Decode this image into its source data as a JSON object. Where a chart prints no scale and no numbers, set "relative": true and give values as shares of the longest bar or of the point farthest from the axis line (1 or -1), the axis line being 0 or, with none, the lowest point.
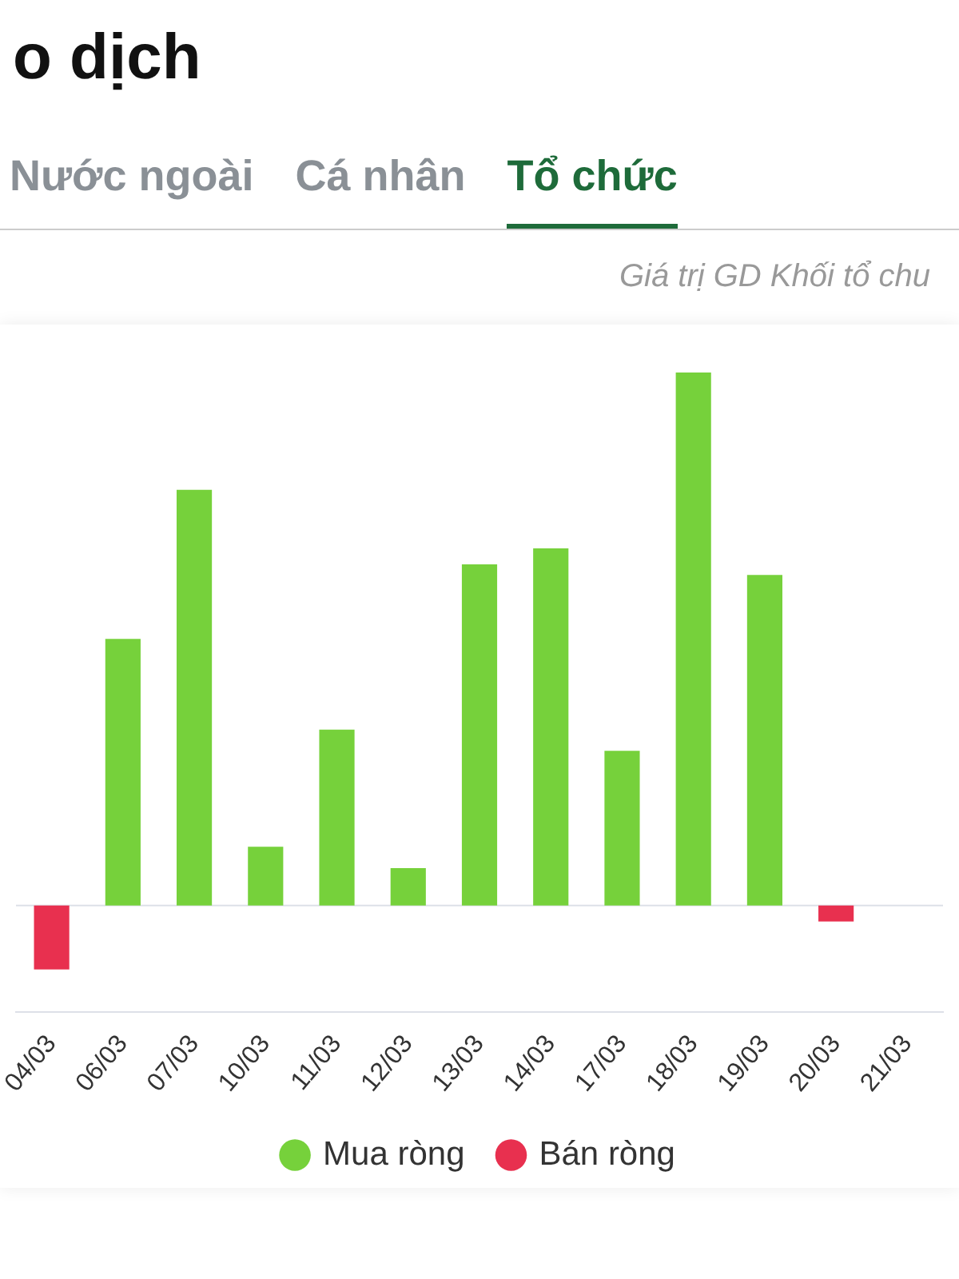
{
  "chart_data": {
    "type": "bar",
    "title": "o dịch",
    "subtitle": "Giá trị GD Khối tổ chu",
    "annotations": [
      "Nước ngoài",
      "Cá nhân",
      "Tổ chức"
    ],
    "categories": [
      "04/03",
      "06/03",
      "07/03",
      "10/03",
      "11/03",
      "12/03",
      "13/03",
      "14/03",
      "17/03",
      "18/03",
      "19/03",
      "20/03",
      "21/03"
    ],
    "relative": true,
    "stacked": true,
    "legend": "bottom",
    "series": [
      {
        "name": "Mua ròng",
        "color": "#76d13b",
        "values": [
          null,
          0.5,
          0.78,
          0.11,
          0.33,
          0.07,
          0.64,
          0.67,
          0.29,
          1,
          0.62,
          null,
          null
        ]
      },
      {
        "name": "Bán ròng",
        "color": "#e8304f",
        "values": [
          -0.12,
          null,
          null,
          null,
          null,
          null,
          null,
          null,
          null,
          null,
          null,
          -0.03,
          null
        ]
      }
    ]
  }
}
